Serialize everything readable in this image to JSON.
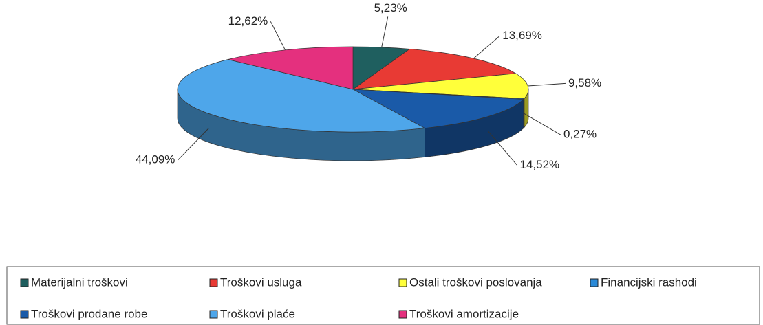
{
  "chart_data": {
    "type": "pie",
    "categories": [
      "Materijalni troškovi",
      "Troškovi usluga",
      "Ostali troškovi poslovanja",
      "Financijski rashodi",
      "Troškovi prodane robe",
      "Troškovi plaće",
      "Troškovi amortizacije"
    ],
    "values": [
      5.23,
      13.69,
      9.58,
      0.27,
      14.52,
      44.09,
      12.62
    ],
    "value_labels": [
      "5,23%",
      "13,69%",
      "9,58%",
      "0,27%",
      "14,52%",
      "44,09%",
      "12,62%"
    ],
    "colors": [
      "#1f5f5f",
      "#e83a34",
      "#ffff3a",
      "#2a8ad8",
      "#1a5aa8",
      "#4ea6ea",
      "#e4307e"
    ],
    "legend": "bottom"
  }
}
